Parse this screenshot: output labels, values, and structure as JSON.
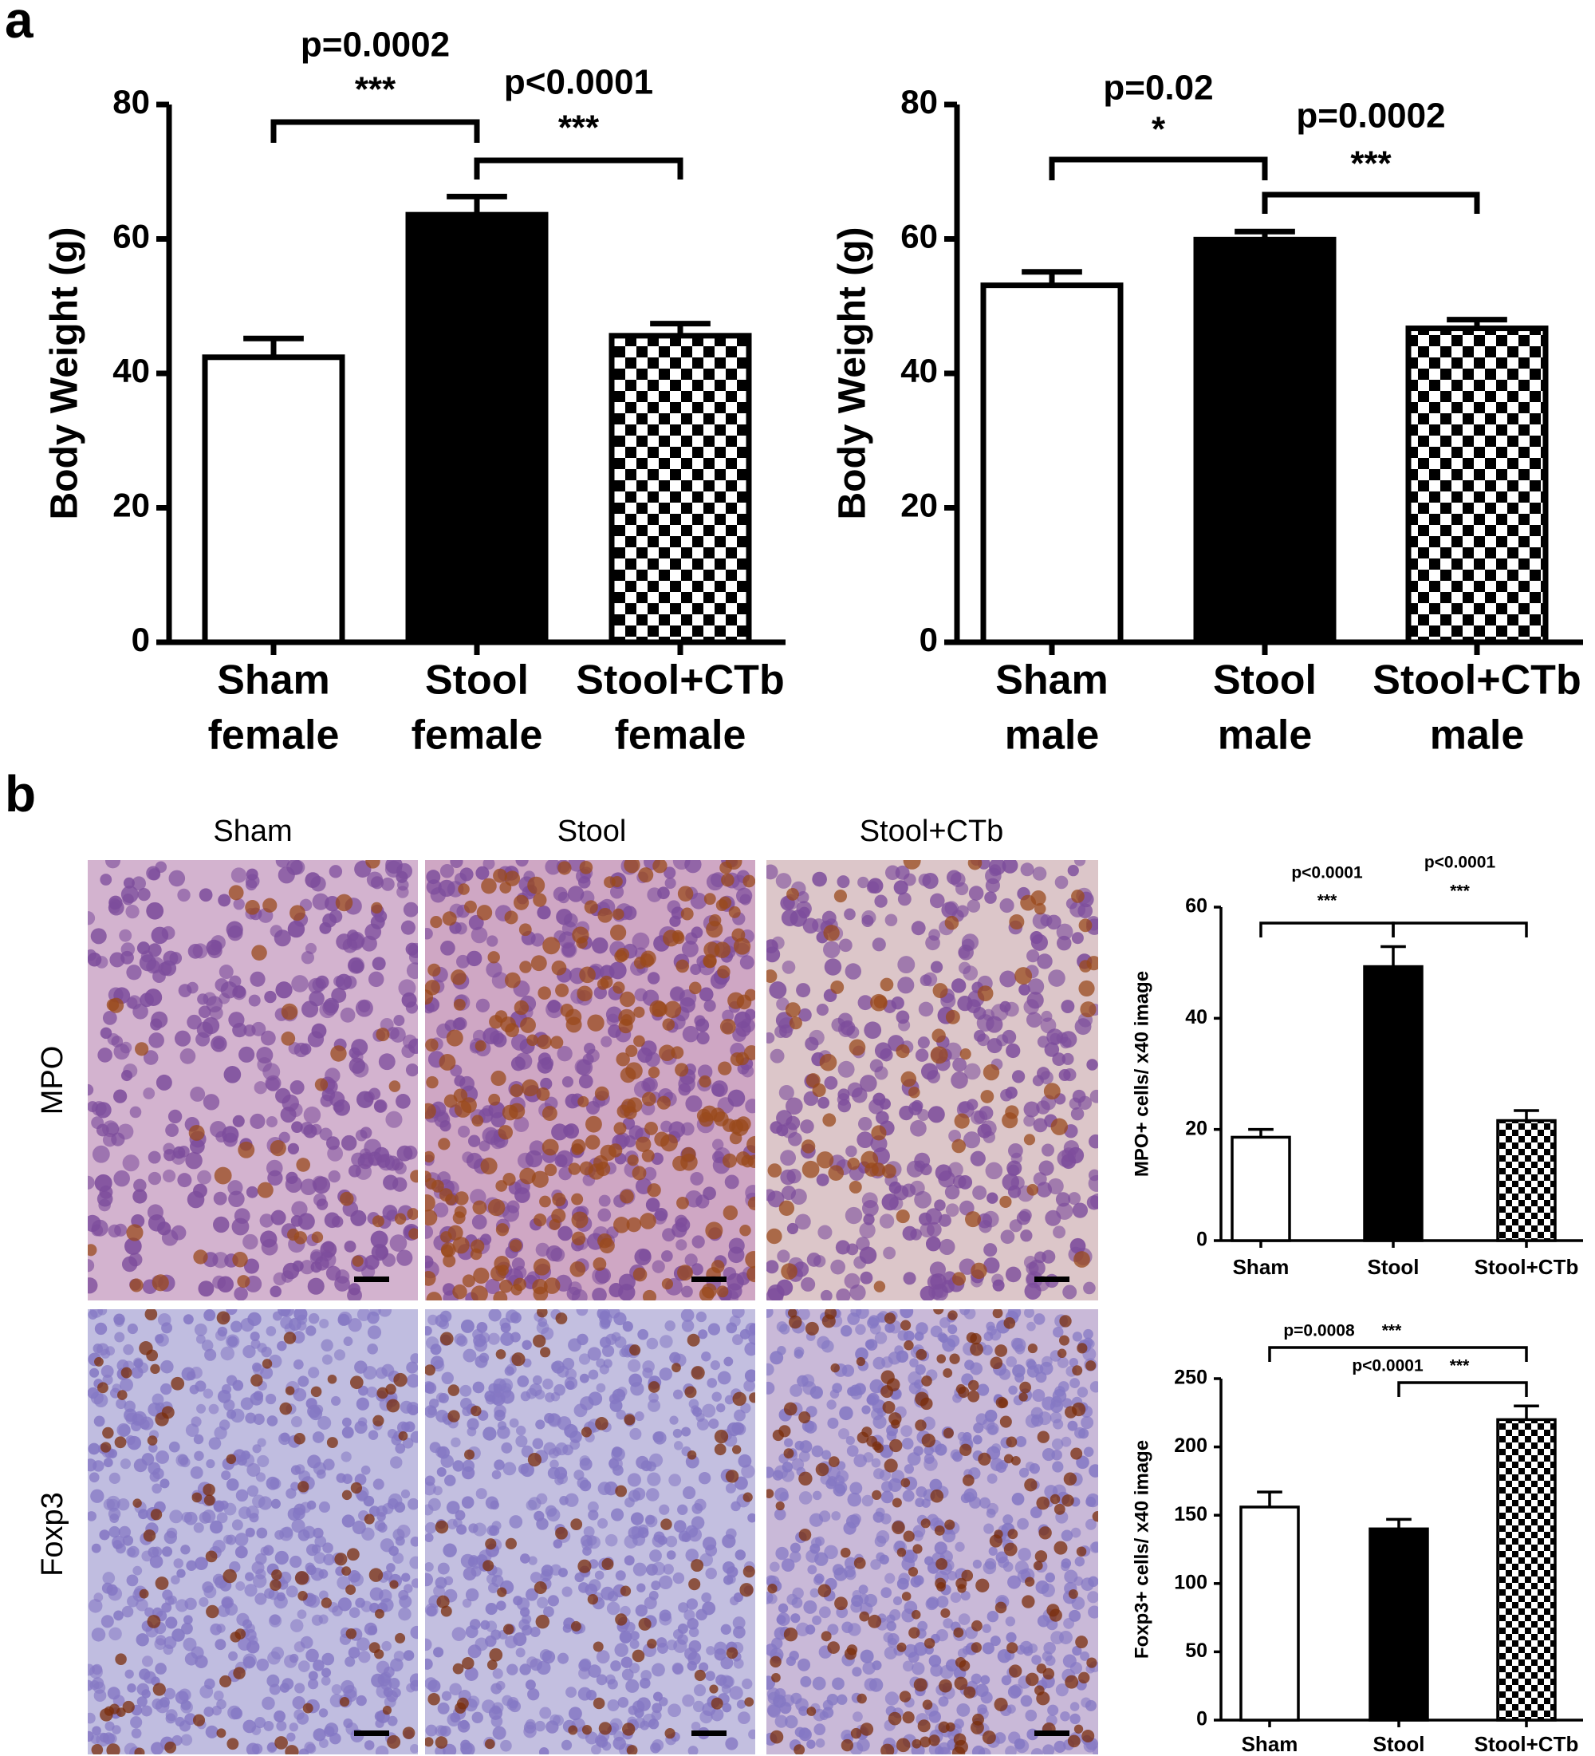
{
  "figure": {
    "panel_labels": [
      "a",
      "b"
    ],
    "image_columns": [
      "Sham",
      "Stool",
      "Stool+CTb"
    ],
    "image_rows": [
      "MPO",
      "Foxp3"
    ]
  },
  "chart_data": [
    {
      "type": "bar",
      "ylabel": "Body Weight (g)",
      "categories": [
        [
          "Sham",
          "female"
        ],
        [
          "Stool",
          "female"
        ],
        [
          "Stool+CTb",
          "female"
        ]
      ],
      "values": [
        42.4,
        63.6,
        45.6
      ],
      "errors": [
        2.8,
        2.7,
        1.8
      ],
      "colors": [
        "#ffffff",
        "#000000",
        "#000000"
      ],
      "patterns": [
        "solid",
        "solid",
        "checker"
      ],
      "ylim": [
        0,
        80
      ],
      "yticks": [
        0,
        20,
        40,
        60,
        80
      ],
      "annotations": [
        {
          "text": "p=0.0002",
          "stars": "***"
        },
        {
          "text": "p<0.0001",
          "stars": "***"
        }
      ]
    },
    {
      "type": "bar",
      "ylabel": "Body Weight (g)",
      "categories": [
        [
          "Sham",
          "male"
        ],
        [
          "Stool",
          "male"
        ],
        [
          "Stool+CTb",
          "male"
        ]
      ],
      "values": [
        53.1,
        59.9,
        46.7
      ],
      "errors": [
        2.0,
        1.2,
        1.3
      ],
      "colors": [
        "#ffffff",
        "#000000",
        "#000000"
      ],
      "patterns": [
        "solid",
        "solid",
        "checker"
      ],
      "ylim": [
        0,
        80
      ],
      "yticks": [
        0,
        20,
        40,
        60,
        80
      ],
      "annotations": [
        {
          "text": "p=0.02",
          "stars": "*"
        },
        {
          "text": "p=0.0002",
          "stars": "***"
        }
      ]
    },
    {
      "type": "bar",
      "ylabel": "MPO+ cells/ x40 image",
      "categories": [
        [
          "Sham"
        ],
        [
          "Stool"
        ],
        [
          "Stool+CTb"
        ]
      ],
      "values": [
        18.6,
        49.3,
        21.6
      ],
      "errors": [
        1.4,
        3.6,
        1.8
      ],
      "colors": [
        "#ffffff",
        "#000000",
        "#000000"
      ],
      "patterns": [
        "solid",
        "solid",
        "checker"
      ],
      "ylim": [
        0,
        60
      ],
      "yticks": [
        0,
        20,
        40,
        60
      ],
      "annotations": [
        {
          "text": "p<0.0001",
          "stars": "***"
        },
        {
          "text": "p<0.0001",
          "stars": "***"
        }
      ]
    },
    {
      "type": "bar",
      "ylabel": "Foxp3+ cells/ x40 image",
      "categories": [
        [
          "Sham"
        ],
        [
          "Stool"
        ],
        [
          "Stool+CTb"
        ]
      ],
      "values": [
        156,
        140,
        220
      ],
      "errors": [
        11,
        7,
        10
      ],
      "colors": [
        "#ffffff",
        "#000000",
        "#000000"
      ],
      "patterns": [
        "solid",
        "solid",
        "checker"
      ],
      "ylim": [
        0,
        250
      ],
      "yticks": [
        0,
        50,
        100,
        150,
        200,
        250
      ],
      "annotations": [
        {
          "text": "p=0.0008",
          "stars": "***"
        },
        {
          "text": "p<0.0001",
          "stars": "***"
        }
      ]
    }
  ]
}
